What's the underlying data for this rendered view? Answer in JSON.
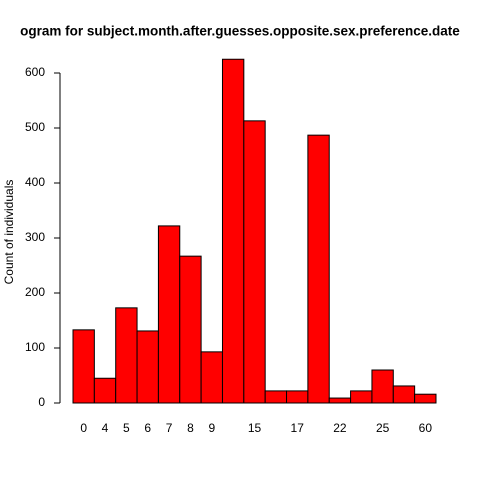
{
  "chart_data": {
    "type": "bar",
    "title": "ogram for subject.month.after.guesses.opposite.sex.preference.date",
    "ylabel": "Count of individuals",
    "categories": [
      "0",
      "4",
      "5",
      "6",
      "7",
      "8",
      "9",
      null,
      "15",
      null,
      "17",
      null,
      "22",
      null,
      "25",
      null,
      "60"
    ],
    "values": [
      133,
      45,
      173,
      131,
      322,
      267,
      93,
      625,
      513,
      22,
      22,
      487,
      9,
      22,
      60,
      31,
      16
    ],
    "color": "#ff0000",
    "ylim": [
      0,
      600
    ],
    "yticks": [
      0,
      100,
      200,
      300,
      400,
      500,
      600
    ]
  }
}
